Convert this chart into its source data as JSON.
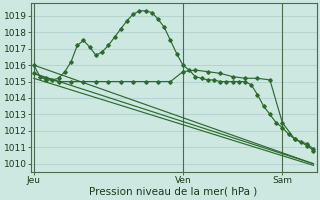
{
  "background_color": "#cce8e0",
  "grid_color": "#aacccc",
  "line_color": "#2d6a2d",
  "ylabel_ticks": [
    1010,
    1011,
    1012,
    1013,
    1014,
    1015,
    1016,
    1017,
    1018,
    1019
  ],
  "xlabel": "Pression niveau de la mer( hPa )",
  "xlabel_fontsize": 7.5,
  "tick_fontsize": 6.5,
  "day_labels": [
    "Jeu",
    "Ven",
    "Sam"
  ],
  "day_positions": [
    0,
    48,
    80
  ],
  "ylim": [
    1009.5,
    1019.75
  ],
  "xlim": [
    -1,
    91
  ],
  "series1_x": [
    0,
    2,
    4,
    6,
    8,
    10,
    12,
    14,
    16,
    18,
    20,
    22,
    24,
    26,
    28,
    30,
    32,
    34,
    36,
    38,
    40,
    42,
    44,
    46,
    48,
    50,
    52,
    54,
    56,
    58,
    60,
    62,
    64,
    66,
    68,
    70,
    72,
    74,
    76,
    78,
    80,
    82,
    84,
    86,
    88,
    90
  ],
  "series1_y": [
    1016.0,
    1015.3,
    1015.1,
    1015.1,
    1015.2,
    1015.6,
    1016.2,
    1017.2,
    1017.5,
    1017.1,
    1016.6,
    1016.8,
    1017.2,
    1017.7,
    1018.2,
    1018.7,
    1019.1,
    1019.3,
    1019.3,
    1019.2,
    1018.8,
    1018.3,
    1017.5,
    1016.7,
    1016.0,
    1015.7,
    1015.3,
    1015.2,
    1015.1,
    1015.1,
    1015.0,
    1015.0,
    1015.0,
    1015.0,
    1015.0,
    1014.8,
    1014.2,
    1013.5,
    1013.0,
    1012.5,
    1012.2,
    1011.8,
    1011.5,
    1011.3,
    1011.1,
    1010.8
  ],
  "series2_x": [
    0,
    4,
    8,
    12,
    16,
    20,
    24,
    28,
    32,
    36,
    40,
    44,
    48,
    52,
    56,
    60,
    64,
    68,
    72,
    76,
    80,
    84,
    88,
    90
  ],
  "series2_y": [
    1015.5,
    1015.2,
    1015.0,
    1015.0,
    1015.0,
    1015.0,
    1015.0,
    1015.0,
    1015.0,
    1015.0,
    1015.0,
    1015.0,
    1015.6,
    1015.7,
    1015.6,
    1015.5,
    1015.3,
    1015.2,
    1015.2,
    1015.1,
    1012.5,
    1011.5,
    1011.2,
    1010.9
  ],
  "series3_x": [
    0,
    90
  ],
  "series3_y": [
    1016.0,
    1010.0
  ],
  "series4_x": [
    0,
    90
  ],
  "series4_y": [
    1015.5,
    1010.0
  ],
  "series5_x": [
    0,
    90
  ],
  "series5_y": [
    1015.2,
    1009.9
  ]
}
